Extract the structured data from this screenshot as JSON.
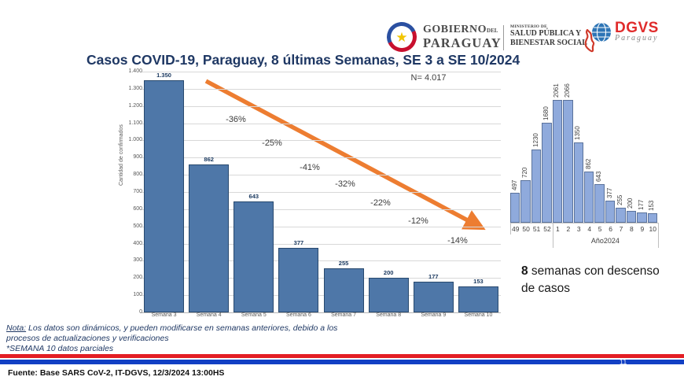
{
  "header": {
    "gobierno": {
      "line1": "GOBIERNO",
      "del": "DEL",
      "line2": "PARAGUAY"
    },
    "ministerio": {
      "small": "MINISTERIO DE",
      "line1": "SALUD PÚBLICA Y",
      "line2": "BIENESTAR SOCIAL"
    },
    "dgvs": {
      "name": "DGVS",
      "country": "Paraguay"
    }
  },
  "title": "Casos COVID-19, Paraguay, 8 últimas Semanas, SE 3 a SE 10/2024",
  "chart_data": [
    {
      "type": "bar",
      "name": "main-weekly-cases",
      "title": "Casos COVID-19, Paraguay, 8 últimas Semanas, SE 3 a SE 10/2024",
      "n_label": "N= 4.017",
      "categories": [
        "Semana 3",
        "Semana 4",
        "Semana 5",
        "Semana 6",
        "Semana 7",
        "Semana 8",
        "Semana 9",
        "Semana 10"
      ],
      "values": [
        1350,
        862,
        643,
        377,
        255,
        200,
        177,
        153
      ],
      "bar_labels": [
        "1.350",
        "862",
        "643",
        "377",
        "255",
        "200",
        "177",
        "153"
      ],
      "pct_changes": [
        "-36%",
        "-25%",
        "-41%",
        "-32%",
        "-22%",
        "-12%",
        "-14%"
      ],
      "ylabel": "Cantidad de confirmados",
      "ylim": [
        0,
        1400
      ],
      "yticks": [
        "0",
        "100",
        "200",
        "300",
        "400",
        "500",
        "600",
        "700",
        "800",
        "900",
        "1.000",
        "1.100",
        "1.200",
        "1.300",
        "1.400"
      ],
      "grid": true,
      "bar_color": "#4E77A8",
      "trend": "descending orange arrow from Semana 3 to Semana 10"
    },
    {
      "type": "bar",
      "name": "inset-epicurve",
      "categories": [
        "49",
        "50",
        "51",
        "52",
        "1",
        "2",
        "3",
        "4",
        "5",
        "6",
        "7",
        "8",
        "9",
        "10"
      ],
      "values": [
        497,
        720,
        1230,
        1680,
        2061,
        2066,
        1350,
        862,
        643,
        377,
        255,
        200,
        177,
        153
      ],
      "bar_labels": [
        "497",
        "720",
        "1230",
        "1680",
        "2061",
        "2066",
        "1350",
        "862",
        "643",
        "377",
        "255",
        "200",
        "177",
        "153"
      ],
      "group_label": "Año2024",
      "group_start_index": 4,
      "ylim": [
        0,
        2100
      ],
      "grid": false,
      "bar_color": "#8FAADC"
    }
  ],
  "annotation": {
    "bold": "8",
    "text": " semanas con descenso de casos"
  },
  "notes": {
    "label": "Nota:",
    "line1": " Los datos son dinámicos, y pueden modificarse en semanas anteriores, debido a los",
    "line2": "procesos de actualizaciones y verificaciones",
    "line3": "*SEMANA 10 datos parciales"
  },
  "footer": {
    "fuente": "Fuente: Base SARS CoV-2, IT-DGVS, 12/3/2024 13:00HS",
    "page": "11"
  },
  "colors": {
    "title": "#1F3864",
    "bar_main": "#4E77A8",
    "bar_inset": "#8FAADC",
    "arrow": "#ED7D31",
    "stripe_red": "#E31E24",
    "stripe_blue": "#1240C4"
  }
}
